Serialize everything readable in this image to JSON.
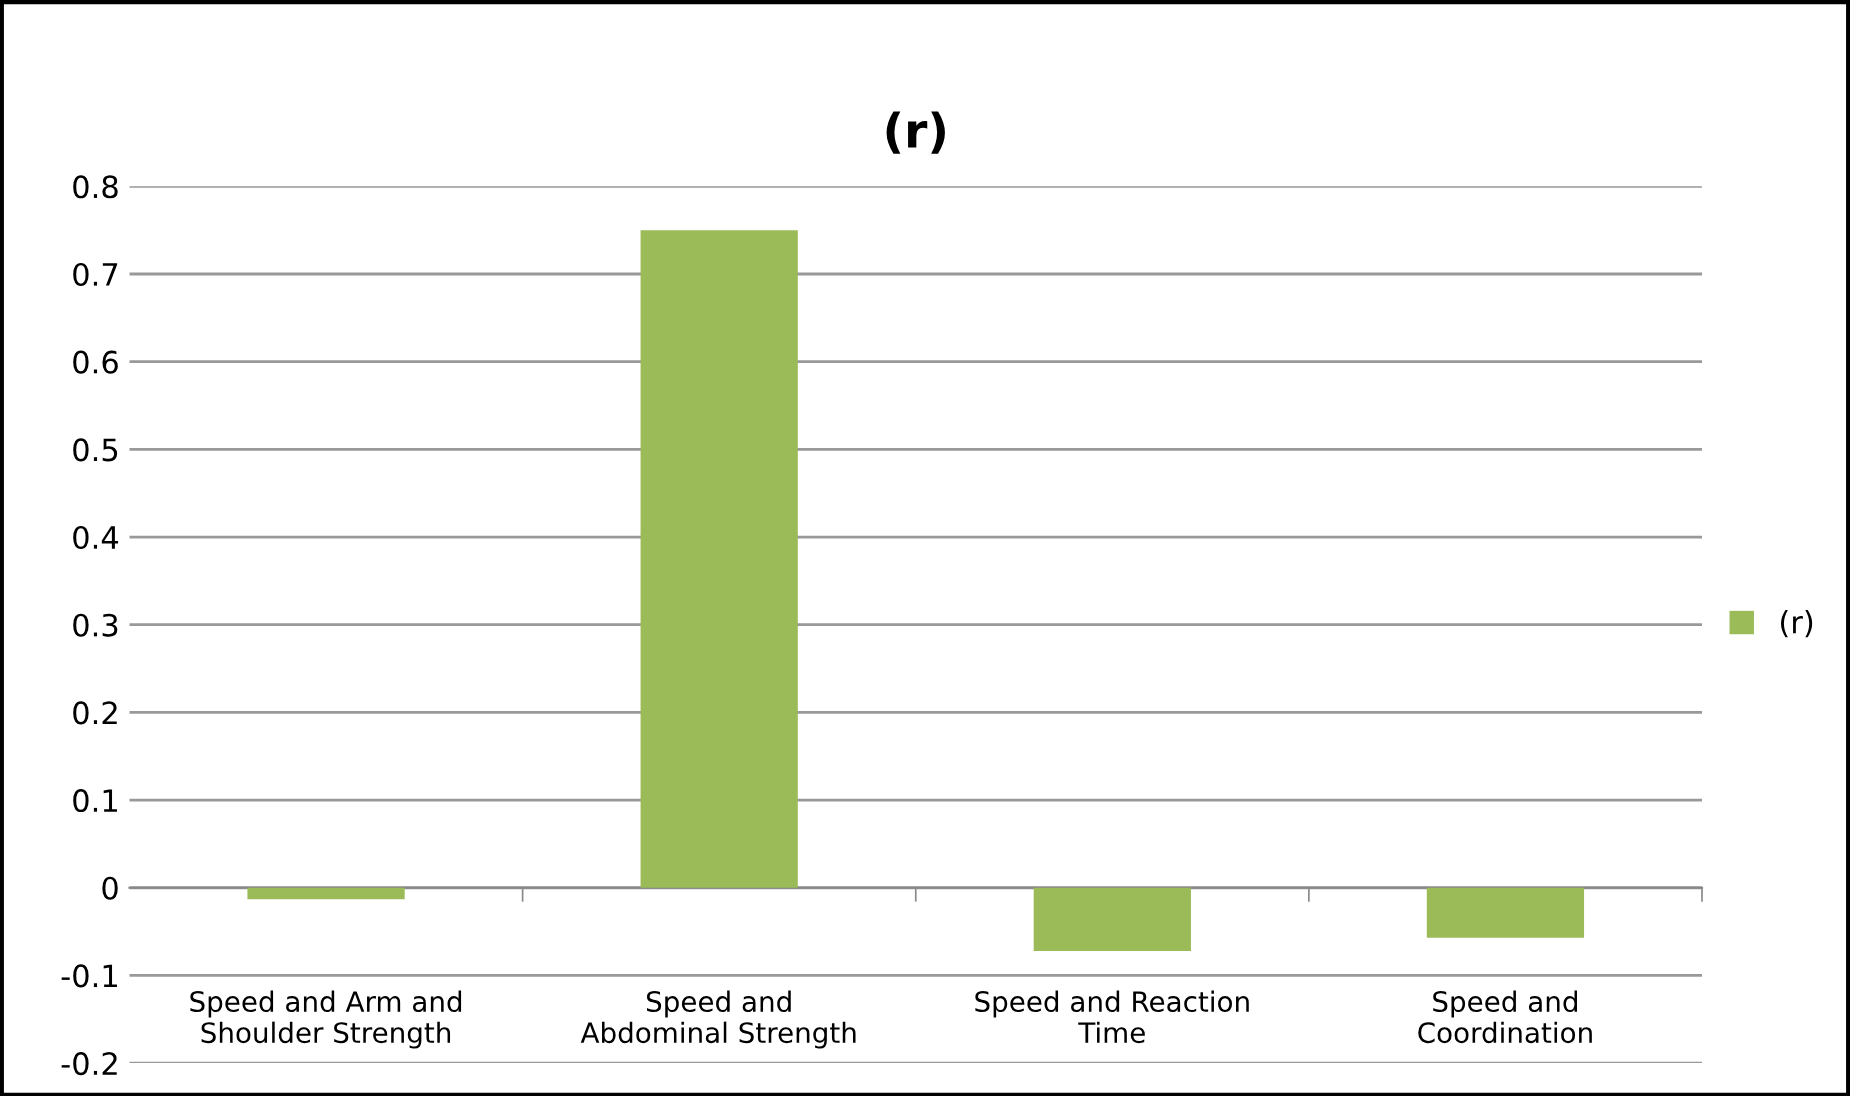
{
  "chart_data": {
    "type": "bar",
    "title": "(r)",
    "categories": [
      "Speed and Arm and\nShoulder Strength",
      "Speed and\nAbdominal Strength",
      "Speed and Reaction\nTime",
      "Speed and\nCoordination"
    ],
    "series": [
      {
        "name": "(r)",
        "color": "#9bbb59",
        "values": [
          -0.013,
          0.75,
          -0.072,
          -0.057
        ]
      }
    ],
    "ylim": [
      -0.2,
      0.8
    ],
    "yticks": [
      -0.2,
      -0.1,
      0,
      0.1,
      0.2,
      0.3,
      0.4,
      0.5,
      0.6,
      0.7,
      0.8
    ],
    "grid": "y",
    "legend": "right"
  }
}
